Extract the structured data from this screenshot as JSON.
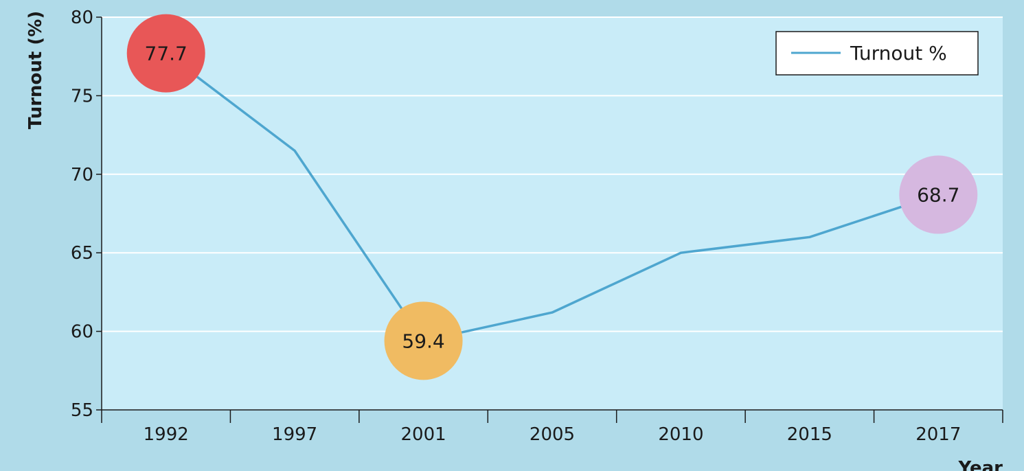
{
  "chart_data": {
    "type": "line",
    "categories": [
      "1992",
      "1997",
      "2001",
      "2005",
      "2010",
      "2015",
      "2017"
    ],
    "series": [
      {
        "name": "Turnout %",
        "values": [
          77.7,
          71.5,
          59.4,
          61.2,
          65.0,
          66.0,
          68.7
        ]
      }
    ],
    "highlighted_points": [
      {
        "category": "1992",
        "value": 77.7,
        "label": "77.7",
        "color": "#e85757"
      },
      {
        "category": "2001",
        "value": 59.4,
        "label": "59.4",
        "color": "#f0bb62"
      },
      {
        "category": "2017",
        "value": 68.7,
        "label": "68.7",
        "color": "#d6b8e0"
      }
    ],
    "ylabel": "Turnout (%)",
    "xlabel": "Year",
    "ylim": [
      55,
      80
    ],
    "yticks": [
      55,
      60,
      65,
      70,
      75,
      80
    ],
    "grid": true,
    "legend_position": "top-right",
    "colors": {
      "line": "#4ea6cf",
      "plot_bg": "#c9ecf8",
      "outer_bg": "#b0dbe9",
      "grid": "#ffffff",
      "axis": "#1a1a1a"
    }
  }
}
